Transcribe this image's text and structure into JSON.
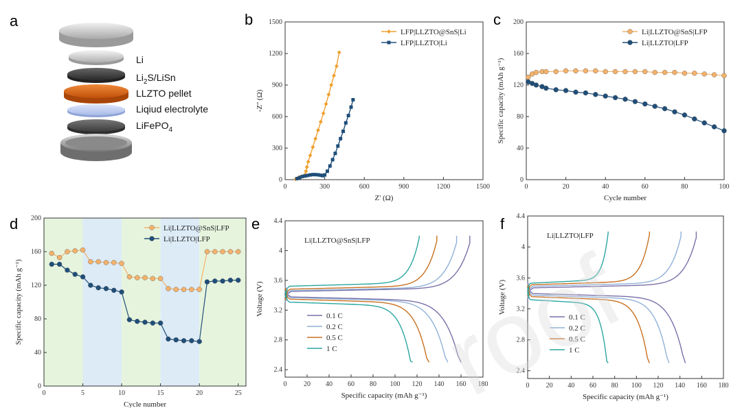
{
  "panel_labels": [
    "a",
    "b",
    "c",
    "d",
    "e",
    "f"
  ],
  "watermark": "roof",
  "panel_a": {
    "layers": [
      {
        "name": "top-cap",
        "label": ""
      },
      {
        "name": "li",
        "label": "Li"
      },
      {
        "name": "li2s-lisn",
        "label": "Li2S/LiSn",
        "label_main": "Li",
        "label_sub": "2",
        "label_rest": "S/LiSn"
      },
      {
        "name": "llzto",
        "label": "LLZTO pellet"
      },
      {
        "name": "liquid",
        "label": "Liqiud electrolyte"
      },
      {
        "name": "lifepo4",
        "label": "LiFePO4",
        "label_main": "LiFePO",
        "label_sub": "4",
        "label_rest": ""
      },
      {
        "name": "bottom-case",
        "label": ""
      }
    ]
  },
  "chart_data": [
    {
      "id": "b",
      "type": "scatter",
      "xlabel": "Z' (Ω)",
      "ylabel": "-Z'' (Ω)",
      "xlim": [
        0,
        1500
      ],
      "ylim": [
        0,
        1500
      ],
      "xticks": [
        0,
        300,
        600,
        900,
        1200,
        1500
      ],
      "yticks": [
        0,
        300,
        600,
        900,
        1200,
        1500
      ],
      "legend_position": "top-right",
      "series": [
        {
          "name": "LFP|LLZTO@SnS|Li",
          "color": "#f0a030",
          "marker": "diamond",
          "x": [
            80,
            95,
            110,
            125,
            140,
            150,
            158,
            165,
            175,
            190,
            210,
            230,
            250,
            270,
            290,
            310,
            330,
            350,
            370,
            390,
            410
          ],
          "y": [
            5,
            15,
            25,
            30,
            35,
            45,
            80,
            120,
            170,
            230,
            310,
            390,
            470,
            550,
            630,
            720,
            810,
            900,
            990,
            1080,
            1210
          ]
        },
        {
          "name": "LFP|LLZTO|Li",
          "color": "#1f4e79",
          "marker": "square",
          "x": [
            90,
            110,
            130,
            150,
            170,
            190,
            210,
            230,
            250,
            270,
            285,
            300,
            320,
            340,
            360,
            380,
            400,
            420,
            440,
            460,
            480,
            500,
            515
          ],
          "y": [
            10,
            20,
            30,
            35,
            40,
            45,
            48,
            48,
            46,
            42,
            38,
            45,
            80,
            130,
            190,
            250,
            320,
            390,
            460,
            540,
            610,
            690,
            760
          ]
        }
      ]
    },
    {
      "id": "c",
      "type": "line",
      "xlabel": "Cycle number",
      "ylabel": "Specific capacity (mAh g⁻¹)",
      "xlim": [
        0,
        100
      ],
      "ylim": [
        0,
        200
      ],
      "xticks": [
        0,
        20,
        40,
        60,
        80,
        100
      ],
      "yticks": [
        0,
        40,
        80,
        120,
        160,
        200
      ],
      "legend_position": "top-right",
      "series": [
        {
          "name": "Li|LLZTO@SnS|LFP",
          "color": "#f5b26b",
          "marker": "circle",
          "x": [
            1,
            3,
            5,
            8,
            10,
            15,
            20,
            25,
            30,
            35,
            40,
            45,
            50,
            55,
            60,
            65,
            70,
            75,
            80,
            85,
            90,
            95,
            100
          ],
          "y": [
            130,
            134,
            136,
            137,
            137,
            137,
            138,
            138,
            138,
            138,
            137,
            137,
            137,
            137,
            137,
            136,
            136,
            136,
            135,
            135,
            134,
            133,
            132
          ]
        },
        {
          "name": "Li|LLZTO|LFP",
          "color": "#1f4e79",
          "marker": "circle",
          "x": [
            1,
            3,
            5,
            8,
            10,
            15,
            20,
            25,
            30,
            35,
            40,
            45,
            50,
            55,
            60,
            65,
            70,
            75,
            80,
            85,
            90,
            95,
            100
          ],
          "y": [
            124,
            122,
            120,
            118,
            116,
            114,
            113,
            111,
            110,
            108,
            106,
            104,
            102,
            99,
            96,
            93,
            90,
            86,
            82,
            77,
            72,
            67,
            62
          ]
        }
      ]
    },
    {
      "id": "d",
      "type": "line",
      "xlabel": "Cycle number",
      "ylabel": "Specific capacity (mAh g⁻¹)",
      "xlim": [
        0,
        26
      ],
      "ylim": [
        0,
        200
      ],
      "xticks": [
        0,
        5,
        10,
        15,
        20,
        25
      ],
      "yticks": [
        0,
        40,
        80,
        120,
        160,
        200
      ],
      "legend_position": "top-right",
      "bands": [
        {
          "from": 0,
          "to": 5,
          "color": "#e6f4de"
        },
        {
          "from": 5,
          "to": 10,
          "color": "#dcebf6"
        },
        {
          "from": 10,
          "to": 15,
          "color": "#e6f4de"
        },
        {
          "from": 15,
          "to": 20,
          "color": "#dcebf6"
        },
        {
          "from": 20,
          "to": 26,
          "color": "#e6f4de"
        }
      ],
      "series": [
        {
          "name": "Li|LLZTO@SnS|LFP",
          "color": "#f5b26b",
          "marker": "circle",
          "x": [
            1,
            2,
            3,
            4,
            5,
            6,
            7,
            8,
            9,
            10,
            11,
            12,
            13,
            14,
            15,
            16,
            17,
            18,
            19,
            20,
            21,
            22,
            23,
            24,
            25
          ],
          "y": [
            158,
            153,
            160,
            161,
            162,
            148,
            148,
            147,
            147,
            146,
            130,
            129,
            129,
            128,
            128,
            116,
            115,
            115,
            115,
            115,
            160,
            160,
            160,
            160,
            160
          ]
        },
        {
          "name": "Li|LLZTO|LFP",
          "color": "#1f4e79",
          "marker": "circle",
          "x": [
            1,
            2,
            3,
            4,
            5,
            6,
            7,
            8,
            9,
            10,
            11,
            12,
            13,
            14,
            15,
            16,
            17,
            18,
            19,
            20,
            21,
            22,
            23,
            24,
            25
          ],
          "y": [
            145,
            145,
            138,
            133,
            130,
            120,
            117,
            116,
            114,
            112,
            79,
            77,
            76,
            75,
            75,
            56,
            55,
            54,
            54,
            53,
            124,
            125,
            125,
            126,
            126
          ]
        }
      ]
    },
    {
      "id": "e",
      "type": "line",
      "title": "Li|LLZTO@SnS|LFP",
      "xlabel": "Specific capacity (mAh g⁻¹)",
      "ylabel": "Voltage (V)",
      "xlim": [
        0,
        180
      ],
      "ylim": [
        2.3,
        4.4
      ],
      "xticks": [
        0,
        20,
        40,
        60,
        80,
        100,
        120,
        140,
        160,
        180
      ],
      "yticks": [
        2.4,
        2.8,
        3.2,
        3.6,
        4.0,
        4.4
      ],
      "legend_position": "bottom-left",
      "series": [
        {
          "name": "0.1 C",
          "color": "#7a6fa8",
          "charge_end": 168,
          "charge_plateau": 3.45,
          "discharge_end": 160,
          "discharge_plateau": 3.38
        },
        {
          "name": "0.2 C",
          "color": "#8fb0d8",
          "charge_end": 156,
          "charge_plateau": 3.46,
          "discharge_end": 148,
          "discharge_plateau": 3.37
        },
        {
          "name": "0.5 C",
          "color": "#c87020",
          "charge_end": 138,
          "charge_plateau": 3.48,
          "discharge_end": 131,
          "discharge_plateau": 3.35
        },
        {
          "name": "1 C",
          "color": "#2aa6a0",
          "charge_end": 122,
          "charge_plateau": 3.52,
          "discharge_end": 116,
          "discharge_plateau": 3.31
        }
      ]
    },
    {
      "id": "f",
      "type": "line",
      "title": "Li|LLZTO|LFP",
      "xlabel": "Specific capacity (mAh g⁻¹)",
      "ylabel": "Voltage (V)",
      "xlim": [
        0,
        180
      ],
      "ylim": [
        2.3,
        4.4
      ],
      "xticks": [
        0,
        20,
        40,
        60,
        80,
        100,
        120,
        140,
        160,
        180
      ],
      "yticks": [
        2.4,
        2.8,
        3.2,
        3.6,
        4.0,
        4.4
      ],
      "legend_position": "bottom-left",
      "series": [
        {
          "name": "0.1 C",
          "color": "#7a6fa8",
          "charge_end": 155,
          "charge_plateau": 3.47,
          "discharge_end": 145,
          "discharge_plateau": 3.4
        },
        {
          "name": "0.2 C",
          "color": "#8fb0d8",
          "charge_end": 141,
          "charge_plateau": 3.49,
          "discharge_end": 130,
          "discharge_plateau": 3.38
        },
        {
          "name": "0.5 C",
          "color": "#c87020",
          "charge_end": 112,
          "charge_plateau": 3.51,
          "discharge_end": 112,
          "discharge_plateau": 3.36
        },
        {
          "name": "1 C",
          "color": "#2aa6a0",
          "charge_end": 74,
          "charge_plateau": 3.53,
          "discharge_end": 74,
          "discharge_plateau": 3.32
        }
      ]
    }
  ]
}
